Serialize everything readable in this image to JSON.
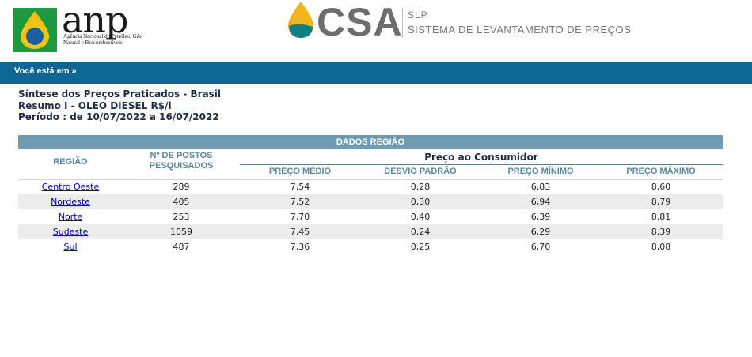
{
  "header": {
    "anp_logo_word": "anp",
    "anp_logo_subtitle": "Agência Nacional do Petróleo, Gás Natural e Biocombustíveis",
    "csa_logo_word": "CSA",
    "system_code": "SLP",
    "system_name": "SISTEMA DE LEVANTAMENTO DE PREÇOS",
    "anp_colors": {
      "green": "#1a9a3c",
      "yellow": "#f2c21b",
      "blue": "#1f5f9f"
    },
    "csa_colors": {
      "drop_yellow": "#f0b51e",
      "drop_teal": "#0f7f86"
    }
  },
  "nav": {
    "breadcrumb": "Você está em »",
    "bar_color": "#0e6695"
  },
  "report": {
    "title": "Síntese dos Preços Praticados - Brasil",
    "subtitle": "Resumo I - OLEO DIESEL R$/l",
    "period": "Período : de 10/07/2022 a 16/07/2022"
  },
  "table": {
    "title": "DADOS REGIÃO",
    "header_color": "#6f9bb1",
    "col_regiao": "REGIÃO",
    "col_postos": "Nº DE POSTOS PESQUISADOS",
    "group_label": "Preço ao Consumidor",
    "col_medio": "PREÇO MÉDIO",
    "col_desvio": "DESVIO PADRÃO",
    "col_minimo": "PREÇO MÍNIMO",
    "col_maximo": "PREÇO MÁXIMO",
    "rows": [
      {
        "regiao": "Centro Oeste",
        "postos": "289",
        "medio": "7,54",
        "desvio": "0,28",
        "minimo": "6,83",
        "maximo": "8,60"
      },
      {
        "regiao": "Nordeste",
        "postos": "405",
        "medio": "7,52",
        "desvio": "0,30",
        "minimo": "6,94",
        "maximo": "8,79"
      },
      {
        "regiao": "Norte",
        "postos": "253",
        "medio": "7,70",
        "desvio": "0,40",
        "minimo": "6,39",
        "maximo": "8,81"
      },
      {
        "regiao": "Sudeste",
        "postos": "1059",
        "medio": "7,45",
        "desvio": "0,24",
        "minimo": "6,29",
        "maximo": "8,39"
      },
      {
        "regiao": "Sul",
        "postos": "487",
        "medio": "7,36",
        "desvio": "0,25",
        "minimo": "6,70",
        "maximo": "8,08"
      }
    ]
  }
}
